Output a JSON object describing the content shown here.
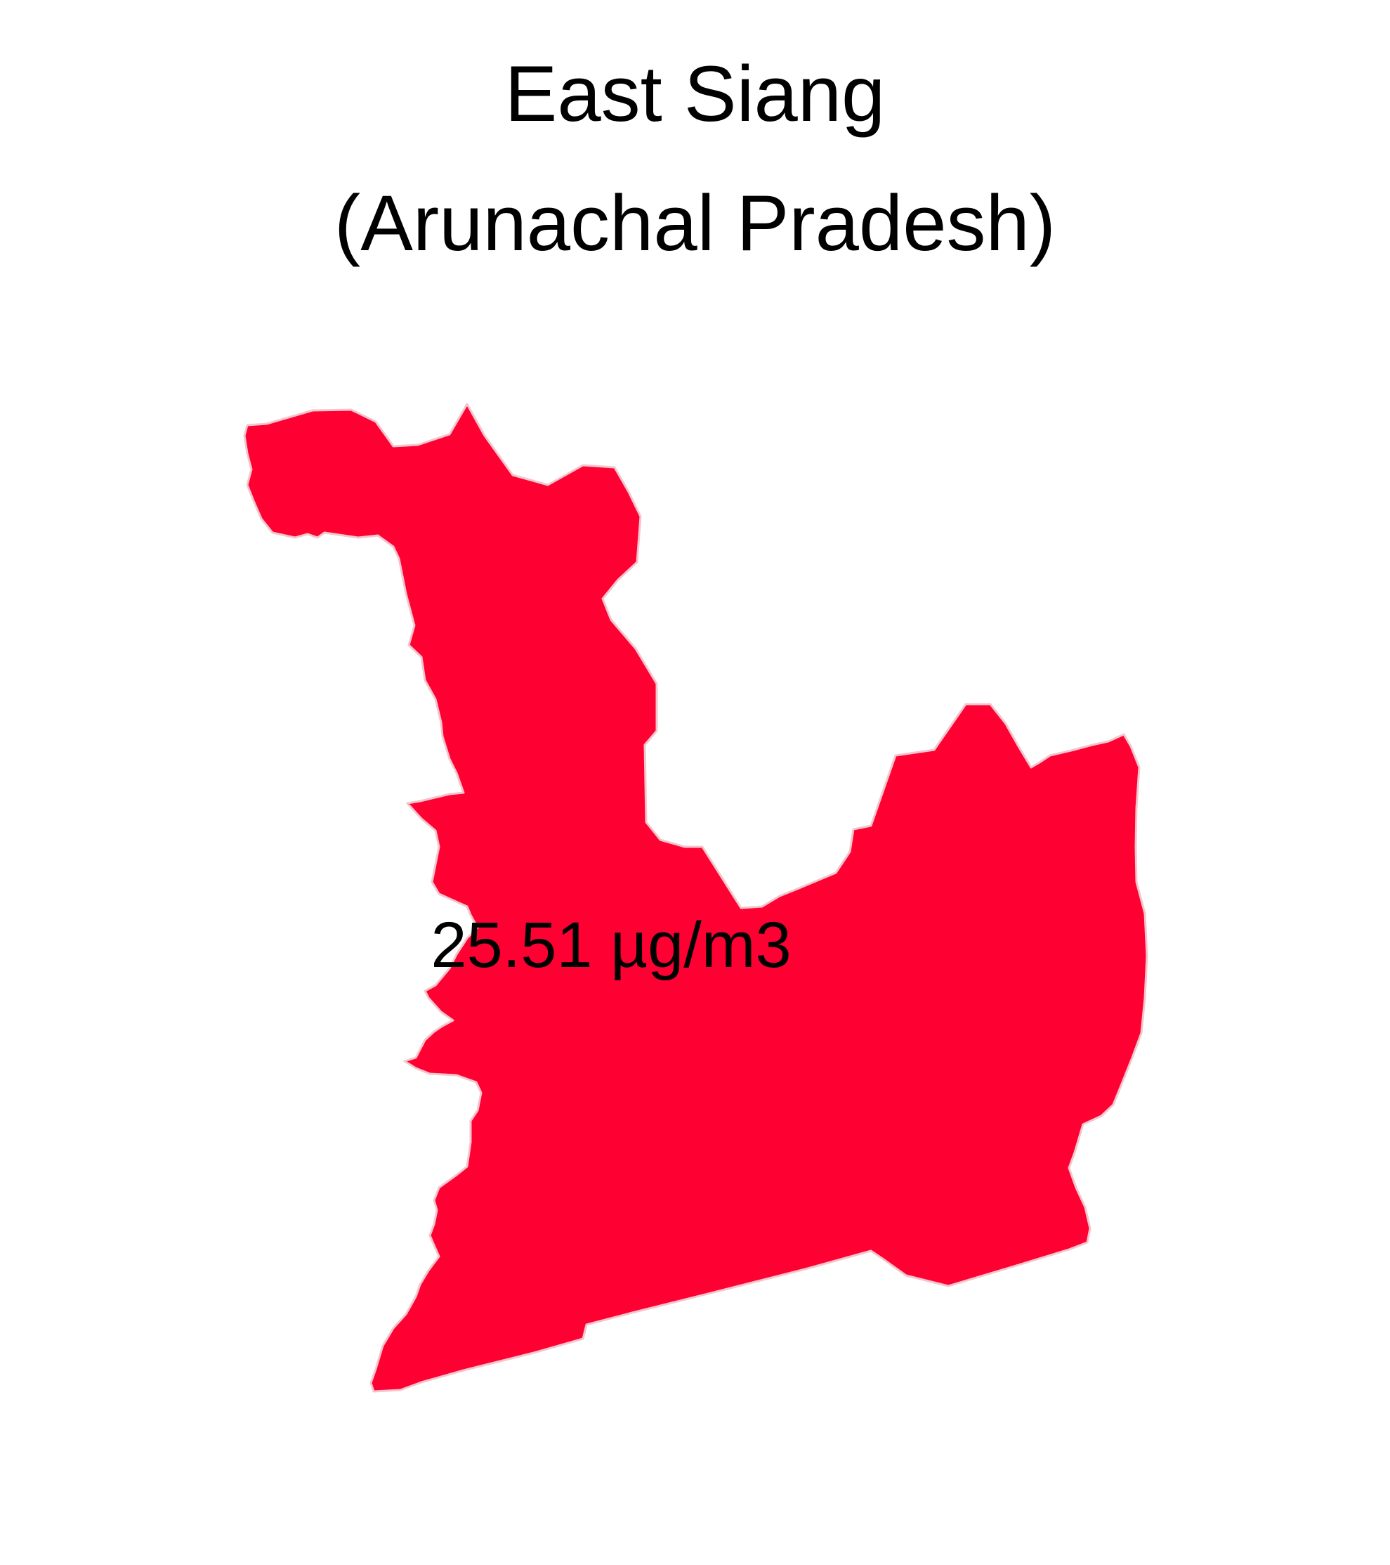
{
  "map": {
    "title_line_1": "East Siang",
    "title_line_2": "(Arunachal Pradesh)",
    "region_value_label": "25.51 µg/m3",
    "region_fill": "#ff0033",
    "region_stroke": "#f2c6cc",
    "label_color": "#000000"
  }
}
